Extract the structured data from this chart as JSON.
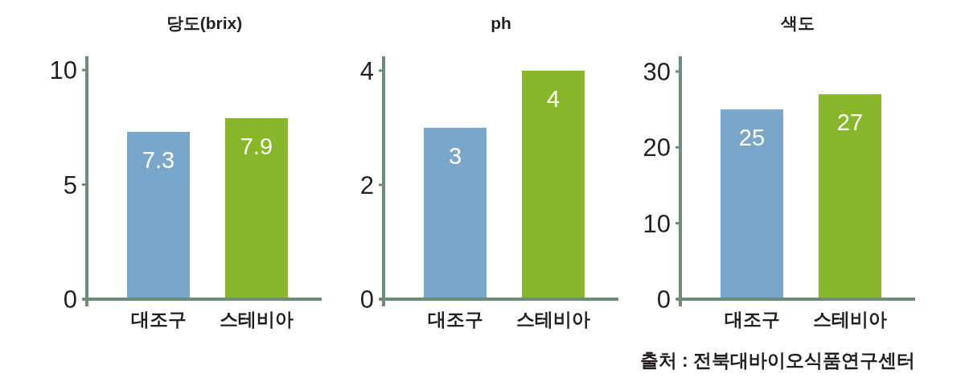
{
  "chart_data": [
    {
      "type": "bar",
      "title": "당도(brix)",
      "categories": [
        "대조구",
        "스테비아"
      ],
      "values": [
        7.3,
        7.9
      ],
      "colors": [
        "#7aa6c9",
        "#88b72b"
      ],
      "ylim": [
        0,
        10.6
      ],
      "yticks": [
        0,
        5,
        10
      ],
      "data_labels": true,
      "grid": false
    },
    {
      "type": "bar",
      "title": "ph",
      "categories": [
        "대조구",
        "스테비아"
      ],
      "values": [
        3,
        4
      ],
      "colors": [
        "#7aa6c9",
        "#88b72b"
      ],
      "ylim": [
        0,
        4.25
      ],
      "yticks": [
        0,
        2,
        4
      ],
      "data_labels": true,
      "grid": false
    },
    {
      "type": "bar",
      "title": "색도",
      "categories": [
        "대조구",
        "스테비아"
      ],
      "values": [
        25,
        27
      ],
      "colors": [
        "#7aa6c9",
        "#88b72b"
      ],
      "ylim": [
        0,
        32
      ],
      "yticks": [
        0,
        10,
        20,
        30
      ],
      "data_labels": true,
      "grid": false,
      "annotations": [
        "출처 : 전북대바이오식품연구센터"
      ]
    }
  ]
}
